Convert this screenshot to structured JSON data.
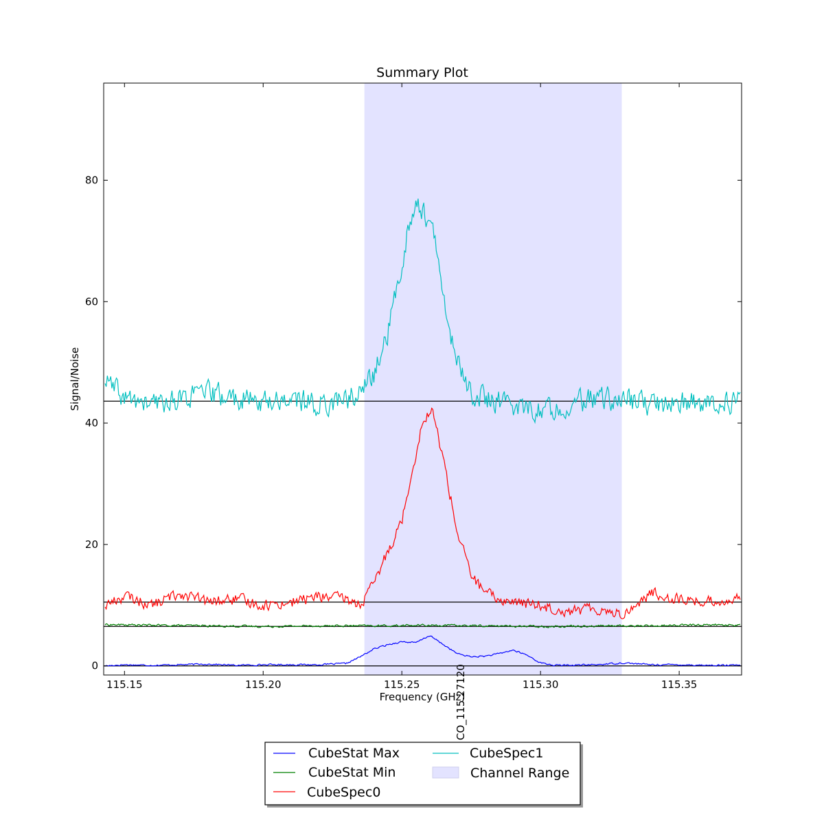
{
  "chart_data": {
    "type": "line",
    "title": "Summary Plot",
    "xlabel": "Frequency (GHz)",
    "ylabel": "Signal/Noise",
    "xlim": [
      115.1425,
      115.3725
    ],
    "ylim": [
      -1.5,
      96
    ],
    "x_ticks": [
      "115.15",
      "115.20",
      "115.25",
      "115.30",
      "115.35"
    ],
    "y_ticks": [
      "0",
      "20",
      "40",
      "60",
      "80"
    ],
    "grid": false,
    "legend_position": "bottom-center",
    "channel_range": {
      "name": "Channel Range",
      "x0": 115.2365,
      "x1": 115.3293,
      "color": "#e3e3ff"
    },
    "reference_lines": [
      {
        "y": 43.6,
        "color": "#000000"
      },
      {
        "y": 10.5,
        "color": "#000000"
      },
      {
        "y": 6.5,
        "color": "#000000"
      },
      {
        "y": 0,
        "color": "#000000"
      }
    ],
    "line_marker": {
      "label": "CO_115.27120",
      "x": 115.2712
    },
    "series": [
      {
        "name": "CubeStat Max",
        "color": "#0000ff",
        "x": [
          115.143,
          115.15,
          115.16,
          115.17,
          115.18,
          115.19,
          115.2,
          115.21,
          115.22,
          115.23,
          115.235,
          115.24,
          115.245,
          115.25,
          115.255,
          115.26,
          115.265,
          115.27,
          115.275,
          115.28,
          115.285,
          115.29,
          115.295,
          115.3,
          115.305,
          115.31,
          115.32,
          115.33,
          115.34,
          115.35,
          115.36,
          115.372
        ],
        "values": [
          0.0,
          0.2,
          0.1,
          0.2,
          0.3,
          0.1,
          0.2,
          0.2,
          0.2,
          0.4,
          1.5,
          2.8,
          3.5,
          4.0,
          3.8,
          5.0,
          3.5,
          2.0,
          1.5,
          1.6,
          2.0,
          2.6,
          1.8,
          0.5,
          0.1,
          0.1,
          0.2,
          0.5,
          0.2,
          0.2,
          0.1,
          0.1
        ]
      },
      {
        "name": "CubeStat Min",
        "color": "#008000",
        "x": [
          115.143,
          115.16,
          115.18,
          115.2,
          115.22,
          115.24,
          115.26,
          115.28,
          115.3,
          115.32,
          115.34,
          115.36,
          115.372
        ],
        "values": [
          6.8,
          6.7,
          6.6,
          6.5,
          6.6,
          6.6,
          6.7,
          6.6,
          6.5,
          6.6,
          6.6,
          6.8,
          6.7
        ]
      },
      {
        "name": "CubeSpec0",
        "color": "#ff0000",
        "x": [
          115.143,
          115.15,
          115.16,
          115.17,
          115.18,
          115.19,
          115.2,
          115.21,
          115.22,
          115.23,
          115.235,
          115.24,
          115.245,
          115.25,
          115.255,
          115.258,
          115.261,
          115.265,
          115.27,
          115.275,
          115.28,
          115.285,
          115.29,
          115.3,
          115.31,
          115.32,
          115.33,
          115.34,
          115.35,
          115.36,
          115.372
        ],
        "values": [
          10.0,
          11.5,
          10.0,
          12.0,
          10.5,
          11.0,
          10.0,
          10.5,
          11.5,
          11.0,
          10.0,
          13.5,
          19.0,
          24.0,
          35.0,
          41.0,
          42.0,
          34.0,
          22.0,
          15.0,
          12.0,
          11.0,
          10.5,
          10.0,
          9.0,
          9.5,
          8.5,
          12.0,
          11.0,
          10.5,
          11.0
        ]
      },
      {
        "name": "CubeSpec1",
        "color": "#00bfbf",
        "x": [
          115.143,
          115.15,
          115.16,
          115.17,
          115.18,
          115.19,
          115.2,
          115.21,
          115.22,
          115.23,
          115.235,
          115.24,
          115.245,
          115.25,
          115.253,
          115.256,
          115.259,
          115.262,
          115.265,
          115.27,
          115.275,
          115.28,
          115.29,
          115.3,
          115.31,
          115.32,
          115.33,
          115.34,
          115.35,
          115.36,
          115.372
        ],
        "values": [
          47.0,
          44.0,
          43.0,
          44.0,
          45.0,
          44.0,
          43.5,
          44.0,
          43.0,
          44.0,
          45.0,
          48.0,
          55.0,
          66.0,
          74.0,
          76.0,
          74.0,
          70.0,
          60.0,
          50.0,
          45.0,
          44.0,
          43.0,
          42.0,
          43.0,
          44.0,
          44.0,
          43.0,
          43.5,
          43.0,
          43.5
        ]
      }
    ]
  }
}
